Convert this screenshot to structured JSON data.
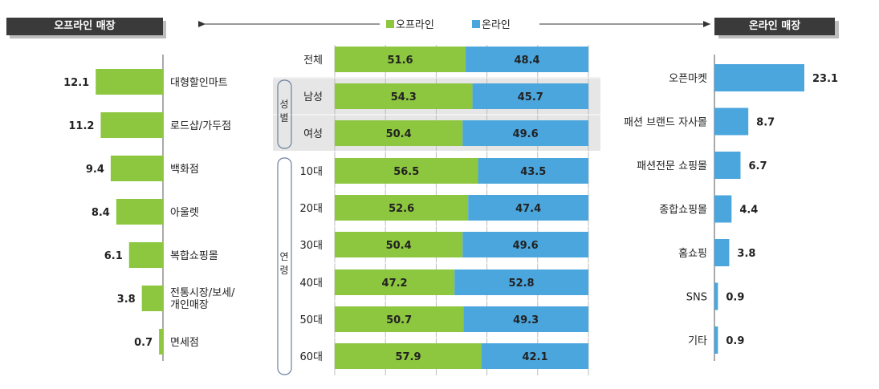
{
  "headers": {
    "offline_store": "오프라인 매장",
    "online_store": "온라인 매장"
  },
  "legend": [
    {
      "label": "오프라인",
      "color": "#8dc63f"
    },
    {
      "label": "온라인",
      "color": "#4ba6de"
    }
  ],
  "colors": {
    "offline": "#8dc63f",
    "online": "#4ba6de",
    "gender_band": "#e6e6e6",
    "axis": "#555555"
  },
  "chart_data": [
    {
      "type": "bar",
      "orientation": "horizontal",
      "title": "오프라인 매장",
      "categories": [
        "대형할인마트",
        "로드샵/가두점",
        "백화점",
        "아울렛",
        "복합쇼핑몰",
        "전통시장/보세/개인매장",
        "면세점"
      ],
      "values": [
        12.1,
        11.2,
        9.4,
        8.4,
        6.1,
        3.8,
        0.7
      ],
      "xlim": [
        0,
        13
      ]
    },
    {
      "type": "bar",
      "orientation": "horizontal",
      "stacked": true,
      "categories": [
        "전체",
        "남성",
        "여성",
        "10대",
        "20대",
        "30대",
        "40대",
        "50대",
        "60대"
      ],
      "groups": [
        {
          "label": "성별",
          "members": [
            "남성",
            "여성"
          ]
        },
        {
          "label": "연령",
          "members": [
            "10대",
            "20대",
            "30대",
            "40대",
            "50대",
            "60대"
          ]
        }
      ],
      "series": [
        {
          "name": "오프라인",
          "values": [
            51.6,
            54.3,
            50.4,
            56.5,
            52.6,
            50.4,
            47.2,
            50.7,
            57.9
          ]
        },
        {
          "name": "온라인",
          "values": [
            48.4,
            45.7,
            49.6,
            43.5,
            47.4,
            49.6,
            52.8,
            49.3,
            42.1
          ]
        }
      ],
      "xlim": [
        0,
        100
      ],
      "grid": true,
      "legend_position": "top-center"
    },
    {
      "type": "bar",
      "orientation": "horizontal",
      "title": "온라인 매장",
      "categories": [
        "오픈마켓",
        "패션 브랜드 자사몰",
        "패션전문 쇼핑몰",
        "종합쇼핑몰",
        "홈쇼핑",
        "SNS",
        "기타"
      ],
      "values": [
        23.1,
        8.7,
        6.7,
        4.4,
        3.8,
        0.9,
        0.9
      ],
      "xlim": [
        0,
        23.1
      ]
    }
  ]
}
